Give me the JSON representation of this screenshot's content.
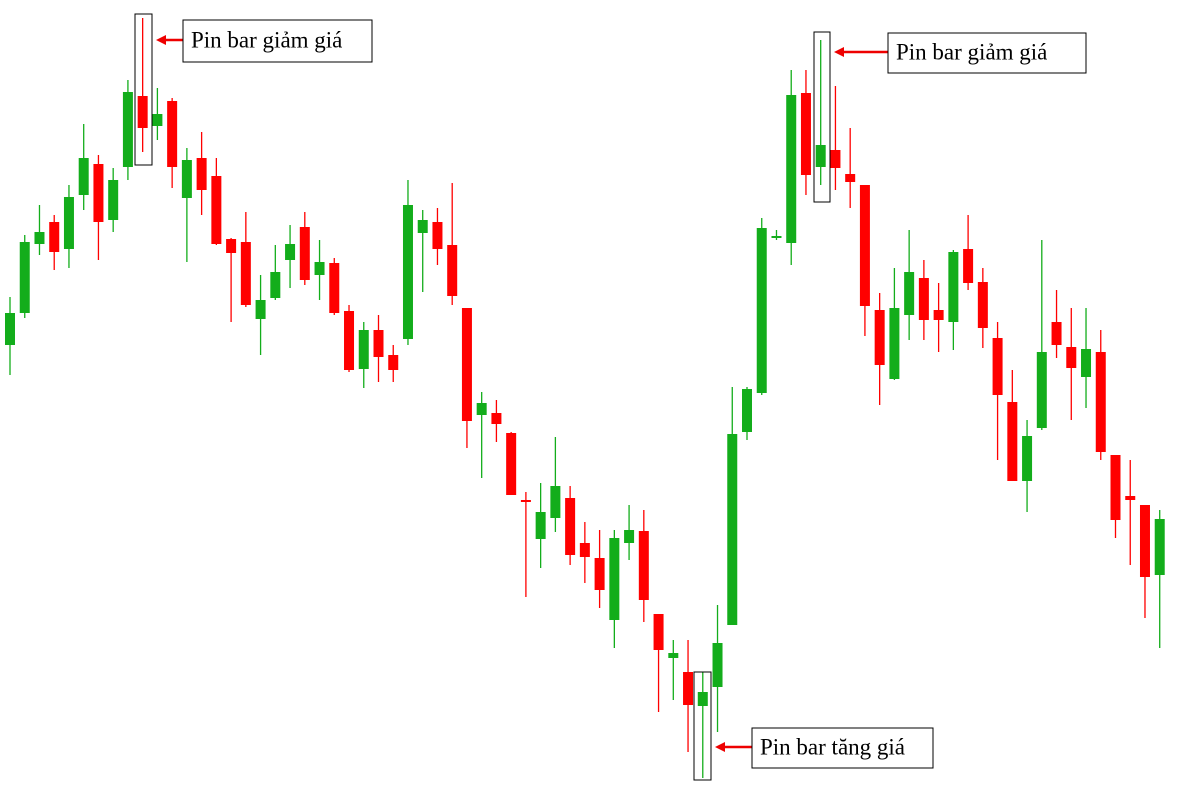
{
  "chart_data": {
    "type": "candlestick",
    "categories": [
      null,
      null,
      null,
      null,
      null,
      null,
      null,
      null,
      null,
      null,
      null,
      null,
      null,
      null,
      null,
      null,
      null,
      null,
      null,
      null,
      null,
      null,
      null,
      null,
      null,
      null,
      null,
      null,
      null,
      null,
      null,
      null,
      null,
      null,
      null,
      null,
      null,
      null,
      null,
      null,
      null,
      null,
      null,
      null,
      null,
      null,
      null,
      null,
      null,
      null,
      null,
      null,
      null,
      null,
      null,
      null,
      null,
      null,
      null,
      null,
      null,
      null,
      null,
      null,
      null,
      null,
      null,
      null,
      null,
      null,
      null,
      null,
      null,
      null,
      null,
      null,
      null,
      null,
      null
    ],
    "open": [
      442,
      474,
      543,
      565,
      538,
      592,
      623,
      567,
      620,
      691,
      661,
      686,
      589,
      629,
      611,
      548,
      545,
      468,
      489,
      527,
      560,
      512,
      524,
      476,
      418,
      457,
      432,
      448,
      554,
      565,
      542,
      479,
      372,
      374,
      354,
      287,
      248,
      269,
      289,
      244,
      229,
      167,
      244,
      256,
      173,
      129,
      115,
      81,
      100,
      162,
      355,
      394,
      549,
      544,
      694,
      620,
      637,
      613,
      602,
      477,
      408,
      472,
      509,
      477,
      465,
      538,
      505,
      449,
      385,
      306,
      359,
      465,
      440,
      410,
      435,
      332,
      291,
      282,
      212
    ],
    "high": [
      490,
      552,
      582,
      572,
      602,
      663,
      632,
      619,
      707,
      769,
      699,
      689,
      639,
      655,
      629,
      549,
      575,
      512,
      542,
      562,
      575,
      547,
      529,
      482,
      465,
      472,
      442,
      607,
      577,
      579,
      604,
      479,
      395,
      387,
      355,
      295,
      304,
      350,
      301,
      265,
      257,
      257,
      282,
      277,
      173,
      147,
      147,
      115,
      182,
      400,
      400,
      569,
      557,
      717,
      717,
      747,
      701,
      659,
      602,
      494,
      519,
      557,
      527,
      504,
      537,
      572,
      519,
      465,
      417,
      367,
      547,
      497,
      479,
      479,
      457,
      332,
      327,
      282,
      277
    ],
    "low": [
      412,
      469,
      532,
      517,
      519,
      577,
      527,
      555,
      607,
      635,
      647,
      599,
      525,
      572,
      542,
      465,
      480,
      432,
      487,
      499,
      502,
      487,
      472,
      415,
      399,
      405,
      405,
      442,
      495,
      522,
      482,
      339,
      309,
      345,
      292,
      190,
      219,
      255,
      222,
      204,
      179,
      139,
      227,
      165,
      75,
      87,
      35,
      9,
      55,
      162,
      347,
      392,
      547,
      522,
      592,
      602,
      597,
      579,
      451,
      382,
      407,
      447,
      447,
      435,
      437,
      497,
      439,
      327,
      306,
      275,
      357,
      429,
      367,
      379,
      327,
      249,
      222,
      169,
      139
    ],
    "close": [
      474,
      545,
      555,
      535,
      590,
      629,
      565,
      607,
      695,
      659,
      673,
      620,
      627,
      597,
      543,
      534,
      482,
      487,
      515,
      543,
      507,
      525,
      474,
      417,
      457,
      430,
      417,
      582,
      567,
      538,
      491,
      366,
      384,
      363,
      292,
      285,
      275,
      301,
      232,
      230,
      197,
      249,
      257,
      187,
      137,
      134,
      82,
      95,
      144,
      353,
      398,
      559,
      551,
      692,
      612,
      642,
      619,
      605,
      481,
      422,
      479,
      515,
      467,
      467,
      535,
      504,
      459,
      392,
      306,
      351,
      435,
      442,
      419,
      438,
      335,
      267,
      287,
      210,
      268
    ],
    "up_color": "#13ad1b",
    "down_color": "#ff0000",
    "ylim": [
      0,
      787
    ],
    "annotations": [
      "Pin bar giảm giá",
      "Pin bar giảm giá",
      "Pin bar tăng giá"
    ]
  }
}
